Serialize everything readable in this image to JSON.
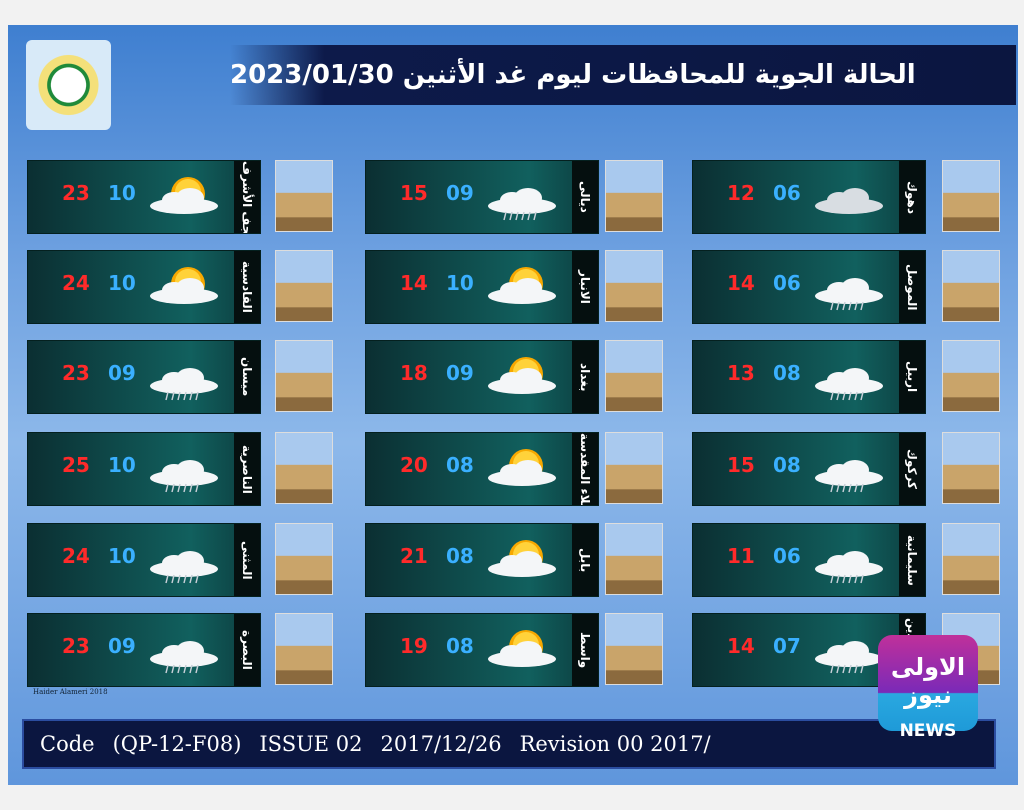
{
  "header": {
    "title": "الحالة الجوية للمحافظات ليوم غد الأثنين 2023/01/30"
  },
  "columns": [
    {
      "cities": [
        {
          "name": "النجف الأشرف",
          "max": "23",
          "min": "10",
          "icon": "sun"
        },
        {
          "name": "القادسية",
          "max": "24",
          "min": "10",
          "icon": "sun"
        },
        {
          "name": "ميسان",
          "max": "23",
          "min": "09",
          "icon": "rain"
        },
        {
          "name": "الناصرية",
          "max": "25",
          "min": "10",
          "icon": "rain"
        },
        {
          "name": "المثنى",
          "max": "24",
          "min": "10",
          "icon": "rain"
        },
        {
          "name": "البصرة",
          "max": "23",
          "min": "09",
          "icon": "rain"
        }
      ]
    },
    {
      "cities": [
        {
          "name": "ديالى",
          "max": "15",
          "min": "09",
          "icon": "rain"
        },
        {
          "name": "الانبار",
          "max": "14",
          "min": "10",
          "icon": "sun"
        },
        {
          "name": "بغداد",
          "max": "18",
          "min": "09",
          "icon": "sun"
        },
        {
          "name": "كربلاء المقدسة",
          "max": "20",
          "min": "08",
          "icon": "sun"
        },
        {
          "name": "بابل",
          "max": "21",
          "min": "08",
          "icon": "sun"
        },
        {
          "name": "واسط",
          "max": "19",
          "min": "08",
          "icon": "sun"
        }
      ]
    },
    {
      "cities": [
        {
          "name": "دهوك",
          "max": "12",
          "min": "06",
          "icon": "cloud"
        },
        {
          "name": "الموصل",
          "max": "14",
          "min": "06",
          "icon": "rain"
        },
        {
          "name": "اربيل",
          "max": "13",
          "min": "08",
          "icon": "rain"
        },
        {
          "name": "كركوك",
          "max": "15",
          "min": "08",
          "icon": "rain"
        },
        {
          "name": "سليمانية",
          "max": "11",
          "min": "06",
          "icon": "rain"
        },
        {
          "name": "صلاح الدين",
          "max": "14",
          "min": "07",
          "icon": "rain"
        }
      ]
    }
  ],
  "credit": "Haider Alameri 2018",
  "footer": [
    "Code",
    "(QP-12-F08)",
    "ISSUE 02",
    "2017/12/26",
    "Revision 00 2017/"
  ],
  "watermark": {
    "brand": "الاولى نيوز",
    "label": "NEWS"
  }
}
